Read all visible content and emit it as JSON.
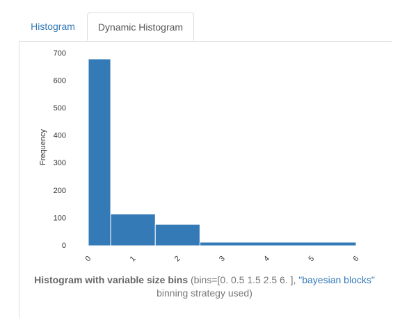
{
  "tabs": [
    "Histogram",
    "Dynamic Histogram"
  ],
  "chart_data": {
    "type": "histogram",
    "ylabel": "Frequency",
    "bins": [
      0,
      0.5,
      1.5,
      2.5,
      6
    ],
    "values": [
      680,
      116,
      78,
      13
    ],
    "color": "#337ab7",
    "xlim": [
      0,
      6
    ],
    "xticks": [
      0,
      1,
      2,
      3,
      4,
      5,
      6
    ],
    "ylim": [
      0,
      700
    ],
    "yticks": [
      0,
      100,
      200,
      300,
      400,
      500,
      600,
      700
    ],
    "grid": false
  },
  "caption": {
    "title": "Histogram with variable size bins",
    "text": "(bins=[0. 0.5 1.5 2.5 6. ],",
    "link": "\"bayesian blocks\"",
    "suffix": "binning strategy used)"
  }
}
